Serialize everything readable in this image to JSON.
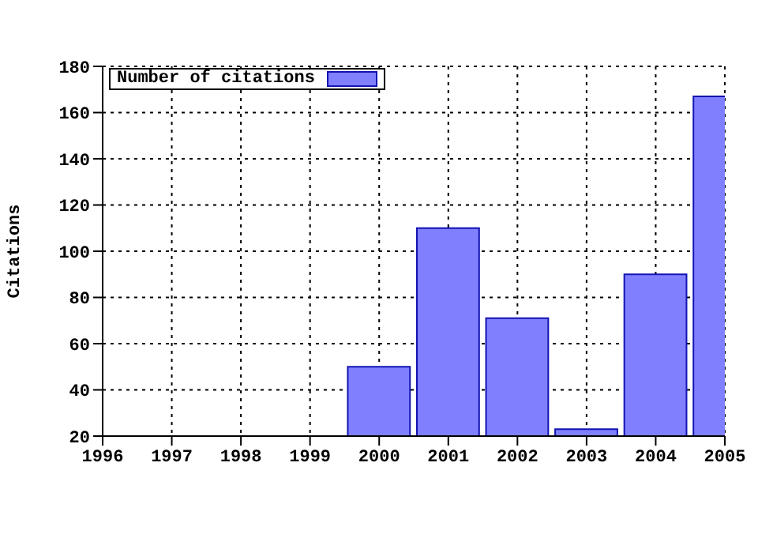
{
  "chart_data": {
    "type": "bar",
    "ylabel": "Citations",
    "x": [
      2000,
      2001,
      2002,
      2003,
      2004,
      2005
    ],
    "series": [
      {
        "name": "Number of citations",
        "color": "#8080ff",
        "values": [
          50,
          110,
          71,
          23,
          90,
          167
        ]
      }
    ],
    "xlim": [
      1996,
      2005
    ],
    "xticks": [
      1996,
      1997,
      1998,
      1999,
      2000,
      2001,
      2002,
      2003,
      2004,
      2005
    ],
    "ylim": [
      20,
      180
    ],
    "yticks": [
      20,
      40,
      60,
      80,
      100,
      120,
      140,
      160,
      180
    ],
    "grid": true,
    "legend": "top left"
  }
}
